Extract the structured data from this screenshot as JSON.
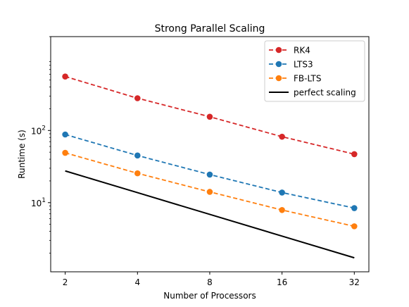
{
  "chart_data": {
    "type": "line",
    "title": "Strong Parallel Scaling",
    "xlabel": "Number of Processors",
    "ylabel": "Runtime (s)",
    "x": [
      2,
      4,
      8,
      16,
      32
    ],
    "x_tick_labels": [
      "2",
      "4",
      "8",
      "16",
      "32"
    ],
    "x_scale": "log2",
    "y_scale": "log10",
    "xlim": [
      1.74,
      36.8
    ],
    "ylim": [
      1.1,
      2000
    ],
    "y_major_ticks": [
      {
        "value": 10,
        "base": "10",
        "exp": "1"
      },
      {
        "value": 100,
        "base": "10",
        "exp": "2"
      }
    ],
    "grid": false,
    "legend_position": "top-right",
    "series": [
      {
        "name": "RK4",
        "values": [
          560,
          280,
          155,
          82,
          47
        ],
        "color": "#d62728",
        "style": "dashed",
        "marker": "circle"
      },
      {
        "name": "LTS3",
        "values": [
          88,
          45,
          24.5,
          13.8,
          8.4
        ],
        "color": "#1f77b4",
        "style": "dashed",
        "marker": "circle"
      },
      {
        "name": "FB-LTS",
        "values": [
          49,
          25.5,
          14.1,
          7.9,
          4.7
        ],
        "color": "#ff7f0e",
        "style": "dashed",
        "marker": "circle"
      },
      {
        "name": "perfect scaling",
        "values": [
          27.5,
          13.75,
          6.875,
          3.4375,
          1.71875
        ],
        "color": "#000000",
        "style": "solid",
        "marker": "none"
      }
    ]
  }
}
